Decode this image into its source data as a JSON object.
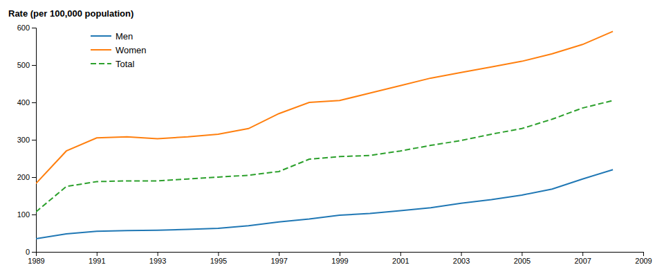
{
  "chart_data": {
    "type": "line",
    "y_label": "Rate (per 100,000 population)",
    "x": [
      1989,
      1990,
      1991,
      1992,
      1993,
      1994,
      1995,
      1996,
      1997,
      1998,
      1999,
      2000,
      2001,
      2002,
      2003,
      2004,
      2005,
      2006,
      2007,
      2008
    ],
    "series": [
      {
        "name": "Men",
        "values": [
          35,
          48,
          55,
          57,
          58,
          60,
          63,
          70,
          80,
          88,
          98,
          103,
          110,
          118,
          130,
          140,
          152,
          168,
          195,
          220
        ]
      },
      {
        "name": "Women",
        "values": [
          183,
          270,
          305,
          308,
          303,
          308,
          315,
          330,
          370,
          400,
          405,
          425,
          445,
          465,
          480,
          495,
          510,
          530,
          555,
          590
        ]
      },
      {
        "name": "Total",
        "line_style": "dashed",
        "values": [
          107,
          175,
          188,
          190,
          190,
          195,
          200,
          205,
          215,
          248,
          255,
          258,
          270,
          285,
          298,
          315,
          330,
          355,
          385,
          405
        ]
      }
    ],
    "xlim": [
      1989,
      2009
    ],
    "xticks": [
      1989,
      1991,
      1993,
      1995,
      1997,
      1999,
      2001,
      2003,
      2005,
      2007,
      2009
    ],
    "ylim": [
      0,
      600
    ],
    "yticks": [
      0,
      100,
      200,
      300,
      400,
      500,
      600
    ],
    "grid": false,
    "legend": "upper left"
  }
}
